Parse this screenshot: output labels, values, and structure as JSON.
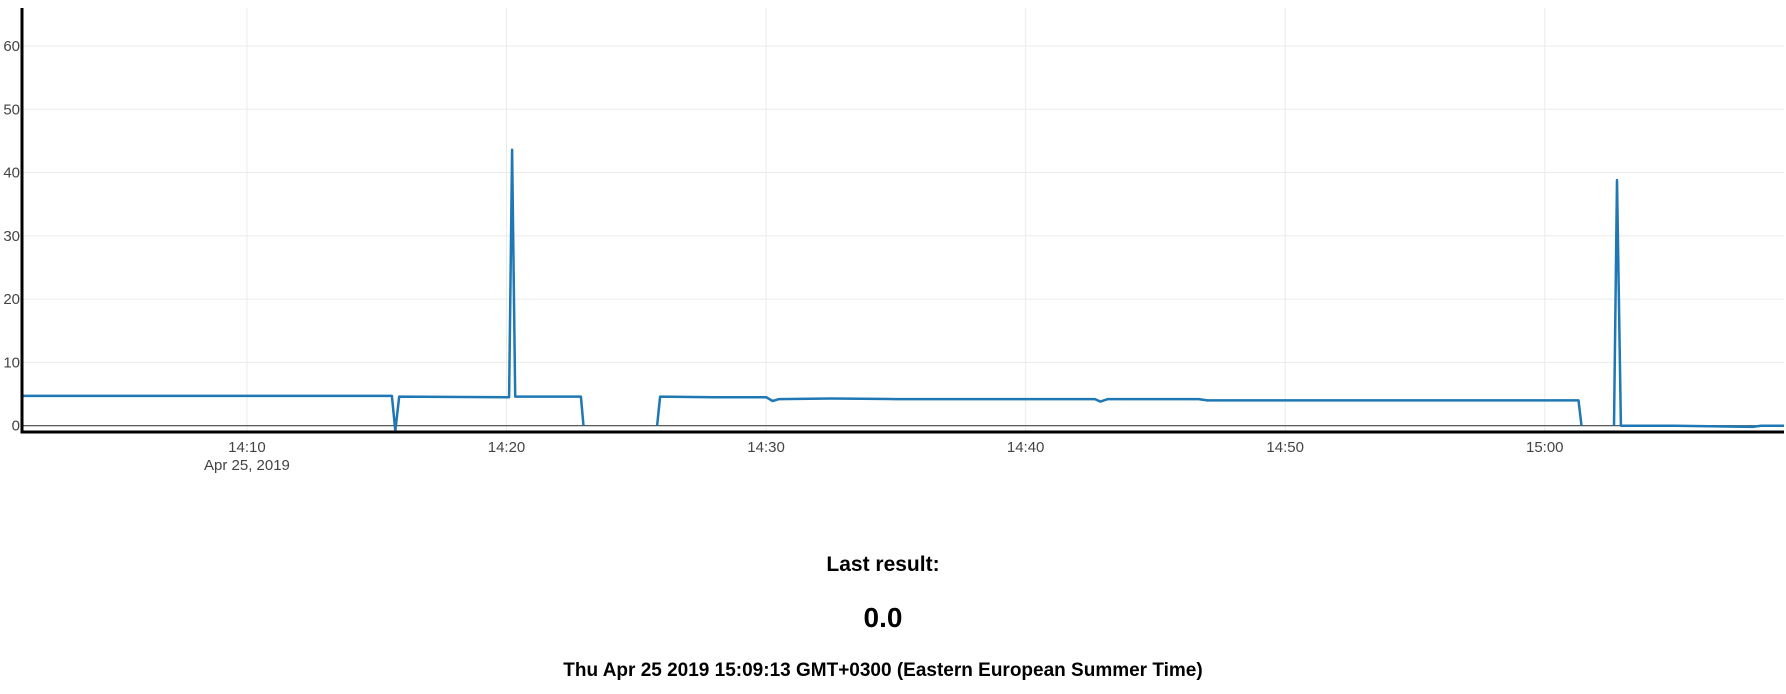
{
  "chart_data": {
    "type": "line",
    "title": "",
    "xlabel": "",
    "ylabel": "",
    "x_range": [
      "2019-04-25 14:01:20",
      "2019-04-25 15:09:13"
    ],
    "ylim": [
      -1,
      66
    ],
    "y_ticks": [
      0,
      10,
      20,
      30,
      40,
      50,
      60
    ],
    "x_ticks": [
      {
        "time": "2019-04-25 14:10:00",
        "label": "14:10",
        "sublabel": "Apr 25, 2019"
      },
      {
        "time": "2019-04-25 14:20:00",
        "label": "14:20",
        "sublabel": ""
      },
      {
        "time": "2019-04-25 14:30:00",
        "label": "14:30",
        "sublabel": ""
      },
      {
        "time": "2019-04-25 14:40:00",
        "label": "14:40",
        "sublabel": ""
      },
      {
        "time": "2019-04-25 14:50:00",
        "label": "14:50",
        "sublabel": ""
      },
      {
        "time": "2019-04-25 15:00:00",
        "label": "15:00",
        "sublabel": ""
      }
    ],
    "grid": true,
    "line_color": "#1f77b4",
    "series": [
      {
        "segments": [
          {
            "x": [
              "2019-04-25 14:01:20",
              "2019-04-25 14:03:00",
              "2019-04-25 14:07:00",
              "2019-04-25 14:12:00",
              "2019-04-25 14:15:35",
              "2019-04-25 14:15:43",
              "2019-04-25 14:15:52",
              "2019-04-25 14:20:06",
              "2019-04-25 14:20:13",
              "2019-04-25 14:20:20",
              "2019-04-25 14:20:28",
              "2019-04-25 14:22:52",
              "2019-04-25 14:22:58"
            ],
            "y": [
              4.7,
              4.7,
              4.7,
              4.7,
              4.7,
              -0.8,
              4.6,
              4.5,
              43.6,
              4.6,
              4.6,
              4.6,
              0
            ]
          },
          {
            "x": [
              "2019-04-25 14:25:48",
              "2019-04-25 14:25:55",
              "2019-04-25 14:28:00",
              "2019-04-25 14:30:00",
              "2019-04-25 14:30:15",
              "2019-04-25 14:30:30",
              "2019-04-25 14:32:30",
              "2019-04-25 14:35:00",
              "2019-04-25 14:40:00",
              "2019-04-25 14:42:40",
              "2019-04-25 14:42:53",
              "2019-04-25 14:43:10",
              "2019-04-25 14:46:40",
              "2019-04-25 14:47:00",
              "2019-04-25 15:00:00",
              "2019-04-25 15:01:18",
              "2019-04-25 15:01:25"
            ],
            "y": [
              0,
              4.6,
              4.5,
              4.5,
              3.9,
              4.2,
              4.3,
              4.2,
              4.2,
              4.2,
              3.8,
              4.2,
              4.2,
              4.0,
              4.0,
              4.0,
              0
            ]
          },
          {
            "x": [
              "2019-04-25 15:02:40",
              "2019-04-25 15:02:47",
              "2019-04-25 15:02:56",
              "2019-04-25 15:05:00",
              "2019-04-25 15:08:00",
              "2019-04-25 15:08:20",
              "2019-04-25 15:09:13"
            ],
            "y": [
              0,
              38.8,
              0,
              0,
              -0.2,
              0,
              0
            ]
          }
        ]
      }
    ]
  },
  "result": {
    "heading": "Last result:",
    "value": "0.0",
    "timestamp": "Thu Apr 25 2019 15:09:13 GMT+0300 (Eastern European Summer Time)"
  }
}
